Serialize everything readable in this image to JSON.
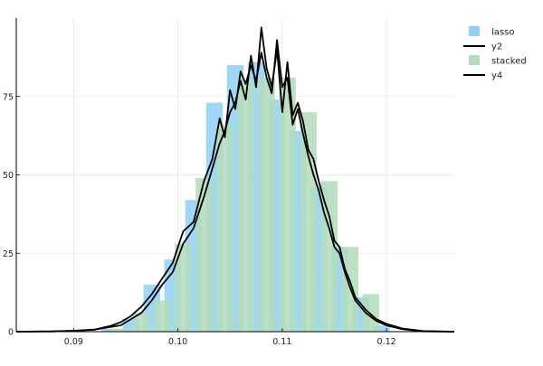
{
  "chart_data": {
    "type": "bar",
    "title": "",
    "xlabel": "",
    "ylabel": "",
    "xlim": [
      0.0845,
      0.1265
    ],
    "ylim": [
      0,
      100
    ],
    "x_ticks": [
      0.09,
      0.1,
      0.11,
      0.12
    ],
    "x_tick_labels": [
      "0.09",
      "0.10",
      "0.11",
      "0.12"
    ],
    "y_ticks": [
      0,
      25,
      50,
      75
    ],
    "y_tick_labels": [
      "0",
      "25",
      "50",
      "75"
    ],
    "grid": true,
    "legend_position": "top-right",
    "series": [
      {
        "name": "lasso",
        "kind": "bar",
        "color": "#8fd0f5",
        "bin_width": 0.0016,
        "x": [
          0.0935,
          0.0955,
          0.0975,
          0.0995,
          0.1015,
          0.1035,
          0.1055,
          0.1075,
          0.1095,
          0.1115,
          0.1135,
          0.1155,
          0.1175,
          0.1195
        ],
        "values": [
          1,
          4,
          15,
          23,
          42,
          73,
          85,
          86,
          74,
          64,
          46,
          27,
          11,
          2
        ]
      },
      {
        "name": "y2",
        "kind": "line",
        "color": "#000000",
        "x": [
          0.0845,
          0.088,
          0.09,
          0.092,
          0.0935,
          0.0945,
          0.0955,
          0.0965,
          0.0975,
          0.0985,
          0.0995,
          0.1005,
          0.1015,
          0.1025,
          0.1033,
          0.104,
          0.1045,
          0.105,
          0.1055,
          0.106,
          0.1065,
          0.107,
          0.1075,
          0.108,
          0.1085,
          0.109,
          0.1095,
          0.11,
          0.1105,
          0.111,
          0.1115,
          0.112,
          0.1125,
          0.113,
          0.1135,
          0.114,
          0.1145,
          0.115,
          0.1155,
          0.116,
          0.1165,
          0.117,
          0.118,
          0.119,
          0.12,
          0.1215,
          0.1235,
          0.1265
        ],
        "values": [
          0,
          0.1,
          0.3,
          0.6,
          1.5,
          2,
          4,
          6,
          10,
          15,
          19,
          28,
          33,
          43,
          52,
          60,
          64,
          70,
          73,
          80,
          74,
          88,
          78,
          97,
          84,
          78,
          90,
          70,
          86,
          69,
          73,
          67,
          58,
          55,
          48,
          42,
          37,
          29,
          27,
          20,
          16,
          11,
          7,
          4,
          2.5,
          1,
          0.2,
          0
        ]
      },
      {
        "name": "stacked",
        "kind": "bar",
        "color": "#b3dcbb",
        "bin_width": 0.0016,
        "x": [
          0.0945,
          0.0965,
          0.0985,
          0.1005,
          0.1025,
          0.1045,
          0.1065,
          0.1085,
          0.1105,
          0.1125,
          0.1145,
          0.1165,
          0.1185
        ],
        "values": [
          1,
          6,
          10,
          28,
          49,
          66,
          80,
          81,
          81,
          70,
          48,
          27,
          12
        ]
      },
      {
        "name": "y4",
        "kind": "line",
        "color": "#000000",
        "x": [
          0.0845,
          0.088,
          0.09,
          0.092,
          0.0935,
          0.0945,
          0.0955,
          0.0965,
          0.0975,
          0.0985,
          0.0995,
          0.1005,
          0.1015,
          0.1025,
          0.1033,
          0.104,
          0.1045,
          0.105,
          0.1055,
          0.106,
          0.1065,
          0.107,
          0.1075,
          0.108,
          0.1085,
          0.109,
          0.1095,
          0.11,
          0.1105,
          0.111,
          0.1115,
          0.112,
          0.1125,
          0.113,
          0.1135,
          0.114,
          0.1145,
          0.115,
          0.1155,
          0.116,
          0.1165,
          0.117,
          0.118,
          0.119,
          0.12,
          0.1215,
          0.1235,
          0.1265
        ],
        "values": [
          0,
          0.1,
          0.3,
          0.7,
          1.8,
          3,
          5,
          8,
          12,
          17,
          22,
          32,
          35,
          48,
          55,
          68,
          62,
          77,
          71,
          83,
          79,
          85,
          80,
          89,
          81,
          76,
          93,
          78,
          81,
          66,
          71,
          63,
          56,
          50,
          45,
          38,
          33,
          27,
          25,
          19,
          14,
          10,
          6,
          3.5,
          2,
          0.8,
          0.1,
          0
        ]
      }
    ]
  }
}
